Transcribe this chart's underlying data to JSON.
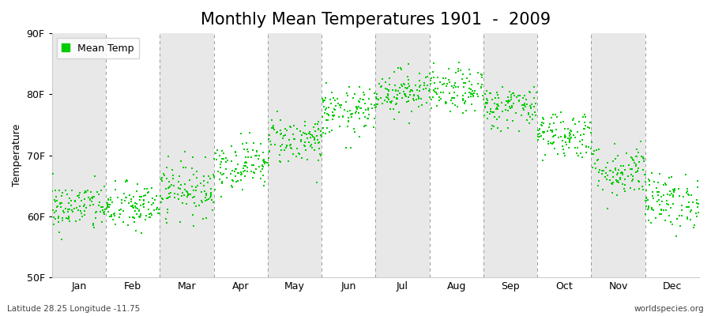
{
  "title": "Monthly Mean Temperatures 1901  -  2009",
  "ylabel": "Temperature",
  "ylim": [
    50,
    90
  ],
  "yticks": [
    50,
    60,
    70,
    80,
    90
  ],
  "ytick_labels": [
    "50F",
    "60F",
    "70F",
    "80F",
    "90F"
  ],
  "months": [
    "Jan",
    "Feb",
    "Mar",
    "Apr",
    "May",
    "Jun",
    "Jul",
    "Aug",
    "Sep",
    "Oct",
    "Nov",
    "Dec"
  ],
  "dot_color": "#00cc00",
  "bg_color": "#ffffff",
  "band_color": "#e8e8e8",
  "legend_label": "Mean Temp",
  "bottom_left": "Latitude 28.25 Longitude -11.75",
  "bottom_right": "worldspecies.org",
  "title_fontsize": 15,
  "axis_fontsize": 9,
  "n_years": 109,
  "monthly_means": [
    61.5,
    61.5,
    64.5,
    68.5,
    72.5,
    77.0,
    80.5,
    80.5,
    78.0,
    73.5,
    67.5,
    62.5
  ],
  "monthly_stds": [
    2.0,
    2.0,
    2.2,
    2.0,
    2.0,
    2.0,
    1.8,
    1.8,
    1.8,
    2.0,
    2.2,
    2.2
  ],
  "seed": 42
}
